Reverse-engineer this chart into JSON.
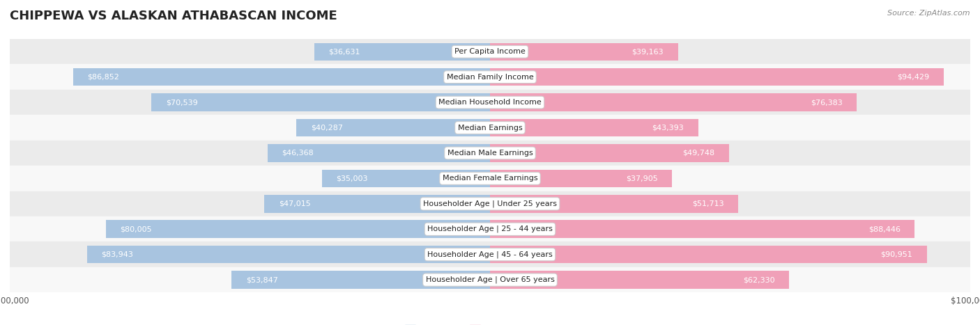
{
  "title": "CHIPPEWA VS ALASKAN ATHABASCAN INCOME",
  "source": "Source: ZipAtlas.com",
  "categories": [
    "Per Capita Income",
    "Median Family Income",
    "Median Household Income",
    "Median Earnings",
    "Median Male Earnings",
    "Median Female Earnings",
    "Householder Age | Under 25 years",
    "Householder Age | 25 - 44 years",
    "Householder Age | 45 - 64 years",
    "Householder Age | Over 65 years"
  ],
  "chippewa_values": [
    36631,
    86852,
    70539,
    40287,
    46368,
    35003,
    47015,
    80005,
    83943,
    53847
  ],
  "alaskan_values": [
    39163,
    94429,
    76383,
    43393,
    49748,
    37905,
    51713,
    88446,
    90951,
    62330
  ],
  "chippewa_color": "#a8c4e0",
  "alaskan_color": "#f0a0b8",
  "row_bg_even": "#ebebeb",
  "row_bg_odd": "#f8f8f8",
  "max_value": 100000,
  "title_fontsize": 13,
  "source_fontsize": 8,
  "axis_label_fontsize": 8.5,
  "bar_label_fontsize": 8,
  "cat_label_fontsize": 8,
  "legend_fontsize": 9,
  "bar_height": 0.7,
  "label_threshold": 20000,
  "inside_label_color": "#ffffff",
  "outside_label_color": "#555555"
}
